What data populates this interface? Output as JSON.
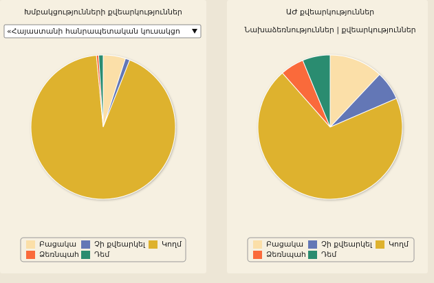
{
  "chart_data": [
    {
      "type": "pie",
      "title": "Խմբակցությունների քվեարկություններ",
      "dropdown": "«Հայաստանի հանրապետական կուսակցո",
      "categories": [
        "Բացակա",
        "Չի քվեարկել",
        "Կողմ",
        "Ձեռնպահ",
        "Դեմ"
      ],
      "values": [
        5,
        1,
        92.5,
        0.5,
        1
      ],
      "colors": [
        "#fbdfa8",
        "#6377b6",
        "#deb22e",
        "#fa6a3b",
        "#2b8c70"
      ]
    },
    {
      "type": "pie",
      "title": "ԱԺ քվեարկություններ",
      "subtitle": "Նախաձեռնություններ | քվեարկություններ",
      "categories": [
        "Բացակա",
        "Չի քվեարկել",
        "Կողմ",
        "Ձեռնպահ",
        "Դեմ"
      ],
      "values": [
        12,
        6.5,
        70,
        5.3,
        6.2
      ],
      "colors": [
        "#fbdfa8",
        "#6377b6",
        "#deb22e",
        "#fa6a3b",
        "#2b8c70"
      ]
    }
  ]
}
